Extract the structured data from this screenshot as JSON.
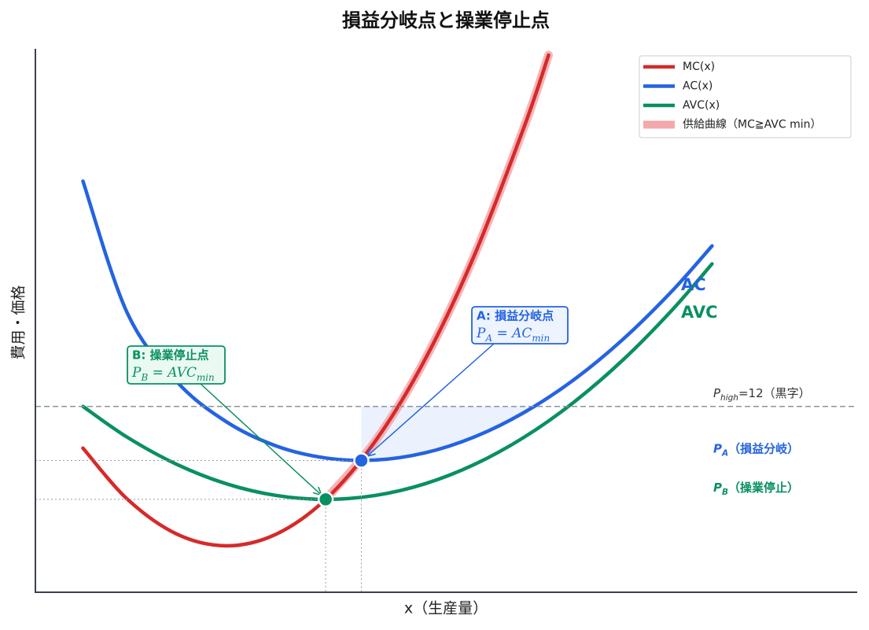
{
  "chart_data": {
    "type": "line",
    "title": "損益分岐点と操業停止点",
    "x_label": "x（生産量）",
    "y_label": "費用・価格",
    "xlim": [
      0.14,
      16.73
    ],
    "ylim": [
      0,
      35.1
    ],
    "series": [
      {
        "name": "MC(x)",
        "color": "#d62a2a",
        "width": 4.5,
        "x": [
          1.1,
          2,
          3,
          4,
          5,
          6,
          7,
          8,
          9,
          10,
          10.5
        ],
        "values": [
          9.31,
          6,
          3.75,
          3,
          3.75,
          6,
          9.75,
          15,
          21.75,
          30,
          34.69
        ]
      },
      {
        "name": "AC(x)",
        "color": "#2563e0",
        "width": 4.5,
        "x": [
          1.1,
          2,
          3,
          4,
          5,
          6,
          7,
          8,
          9,
          10,
          11,
          12,
          13,
          13.8
        ],
        "values": [
          26.55,
          18,
          13.58,
          11,
          9.45,
          8.67,
          8.54,
          9,
          10.03,
          11.6,
          13.7,
          16.33,
          19.48,
          22.37
        ]
      },
      {
        "name": "AVC(x)",
        "color": "#0a9060",
        "width": 4.5,
        "x": [
          1.1,
          2,
          3,
          4,
          5,
          6,
          7,
          8,
          9,
          10,
          11,
          12,
          13,
          13.8
        ],
        "values": [
          12,
          10,
          8.25,
          7,
          6.25,
          6,
          6.25,
          7,
          8.25,
          10,
          12.25,
          15,
          18.25,
          21.21
        ]
      },
      {
        "name": "供給曲線（MC≧AVC min）",
        "color": "#f4a8ab",
        "width": 11,
        "under": true,
        "x": [
          6,
          7,
          8,
          9,
          10,
          10.5
        ],
        "values": [
          6,
          9.75,
          15,
          21.75,
          30,
          34.69
        ]
      }
    ],
    "points": [
      {
        "x": 6.72,
        "y": 8.51,
        "color": "#2563e0",
        "box_fill": "#eef4ff",
        "title": "A: 損益分岐点",
        "formula": [
          {
            "math": "P"
          },
          {
            "sub": "A"
          },
          {
            "math": " = AC"
          },
          {
            "sub": "min"
          }
        ],
        "price_label": [
          {
            "math": "P"
          },
          {
            "sub": "A"
          },
          {
            "text": "（損益分岐）"
          }
        ]
      },
      {
        "x": 6,
        "y": 6,
        "color": "#0a9060",
        "box_fill": "#eafaf3",
        "title": "B: 操業停止点",
        "formula": [
          {
            "math": "P"
          },
          {
            "sub": "B"
          },
          {
            "math": " = AVC"
          },
          {
            "sub": "min"
          }
        ],
        "price_label": [
          {
            "math": "P"
          },
          {
            "sub": "B"
          },
          {
            "text": "（操業停止）"
          }
        ]
      }
    ],
    "hline": {
      "value": 12,
      "color": "#8a94a0",
      "label": [
        {
          "math": "P"
        },
        {
          "sub": "high"
        },
        {
          "text": "=12（黒字）"
        }
      ]
    },
    "curve_labels": [
      {
        "text": "AC",
        "color": "#2563e0"
      },
      {
        "text": "AVC",
        "color": "#0a9060"
      }
    ],
    "legend": "upper right"
  }
}
